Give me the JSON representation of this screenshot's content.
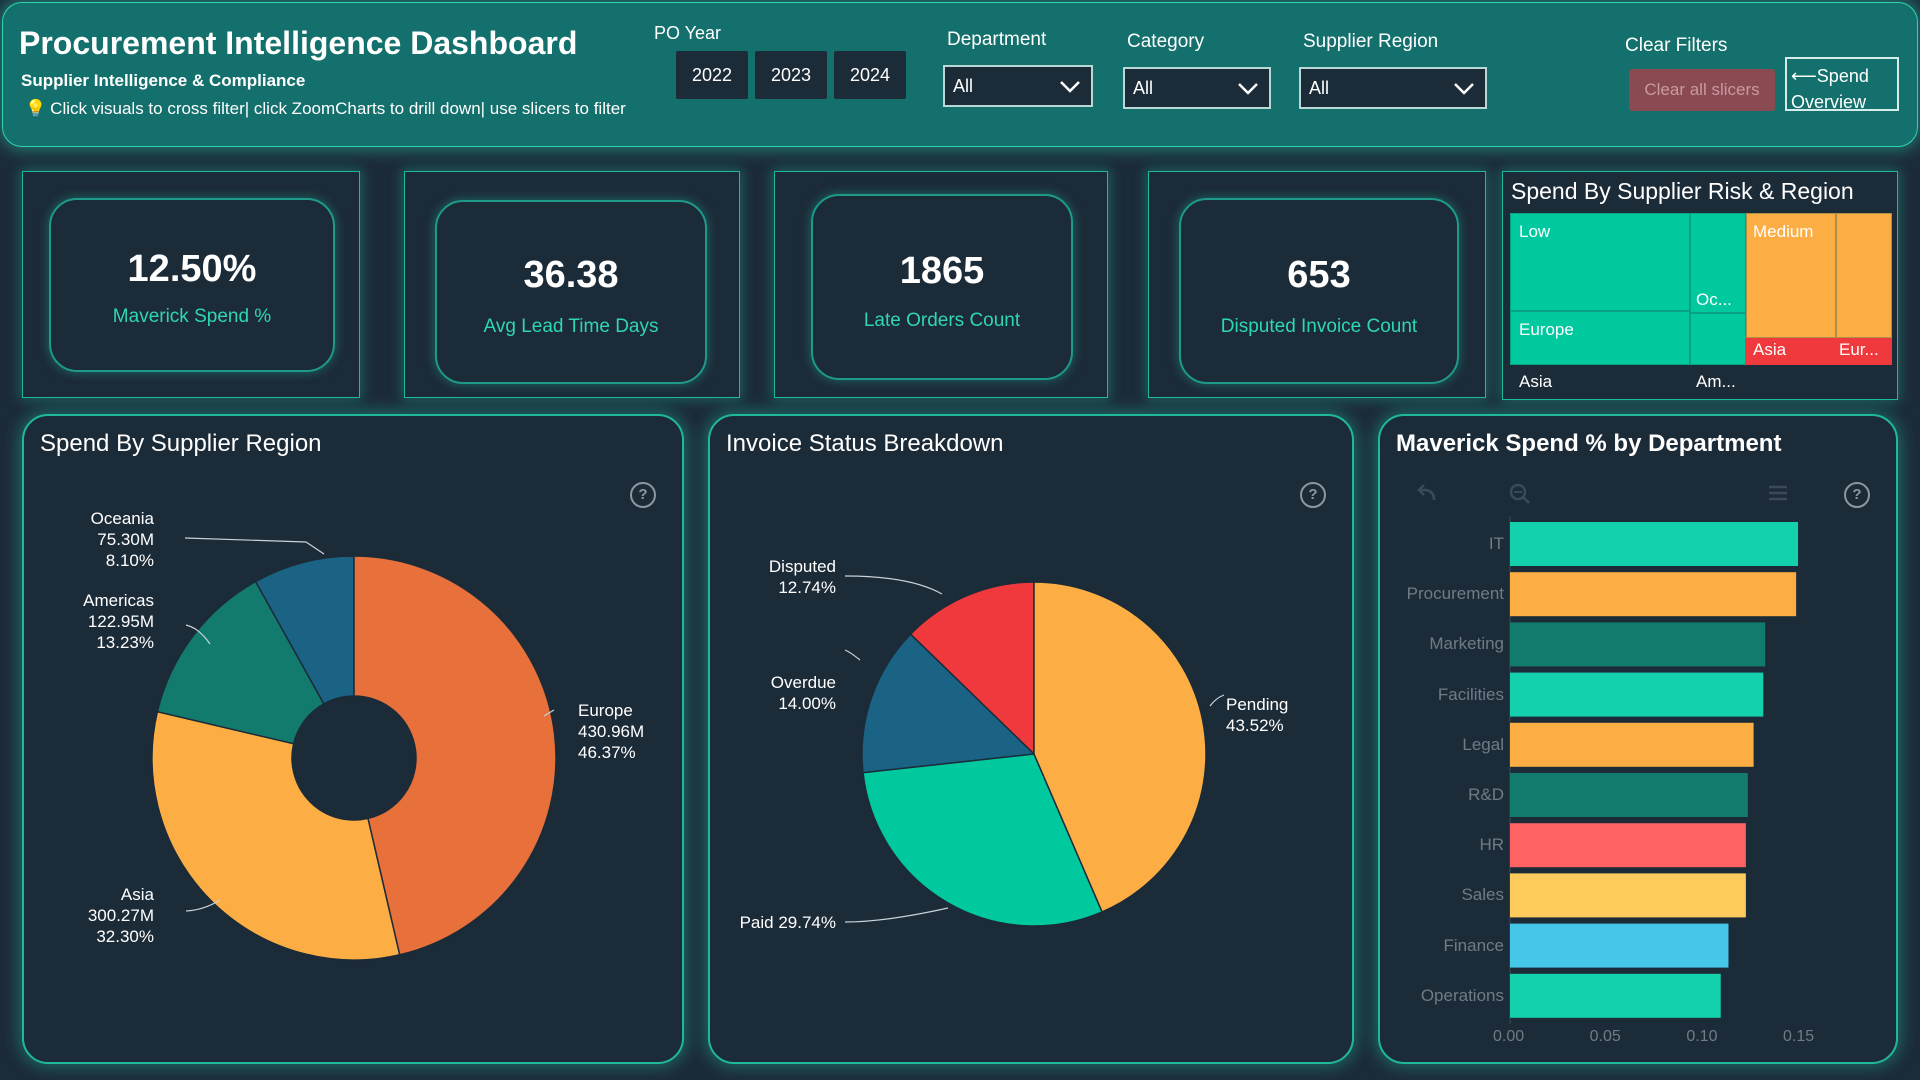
{
  "header": {
    "title": "Procurement Intelligence Dashboard",
    "subtitle": "Supplier Intelligence & Compliance",
    "hint": "Click visuals to cross filter| click ZoomCharts to drill down| use slicers to filter",
    "po_year_label": "PO Year",
    "years": [
      "2022",
      "2023",
      "2024"
    ],
    "department_label": "Department",
    "department_value": "All",
    "category_label": "Category",
    "category_value": "All",
    "region_label": "Supplier Region",
    "region_value": "All",
    "clear_filters_label": "Clear Filters",
    "clear_button": "Clear all slicers",
    "spend_overview_button": "⟵Spend Overview"
  },
  "kpis": [
    {
      "value": "12.50%",
      "label": "Maverick Spend %"
    },
    {
      "value": "36.38",
      "label": "Avg Lead Time Days"
    },
    {
      "value": "1865",
      "label": "Late Orders Count"
    },
    {
      "value": "653",
      "label": "Disputed Invoice Count"
    }
  ],
  "treemap": {
    "title": "Spend By Supplier Risk & Region",
    "labels": [
      "Low",
      "Europe",
      "Asia",
      "Oc...",
      "Am...",
      "Medium",
      "Asia",
      "Eur..."
    ],
    "colors": {
      "low": "#00c9a0",
      "medium": "#fcae45",
      "high": "#f0393c"
    }
  },
  "charts": {
    "region": {
      "title": "Spend By Supplier Region",
      "labels": [
        {
          "name": "Oceania",
          "amount": "75.30M",
          "pct": "8.10%"
        },
        {
          "name": "Americas",
          "amount": "122.95M",
          "pct": "13.23%"
        },
        {
          "name": "Europe",
          "amount": "430.96M",
          "pct": "46.37%"
        },
        {
          "name": "Asia",
          "amount": "300.27M",
          "pct": "32.30%"
        }
      ]
    },
    "invoice": {
      "title": "Invoice Status Breakdown",
      "labels": [
        {
          "name": "Disputed",
          "pct": "12.74%"
        },
        {
          "name": "Overdue",
          "pct": "14.00%"
        },
        {
          "name": "Pending",
          "pct": "43.52%"
        },
        {
          "name": "Paid",
          "pct": "29.74%"
        }
      ]
    },
    "maverick": {
      "title": "Maverick Spend % by Department",
      "ticks": [
        "0.00",
        "0.05",
        "0.10",
        "0.15"
      ]
    }
  },
  "chart_data": [
    {
      "type": "pie",
      "title": "Spend By Supplier Region",
      "categories": [
        "Europe",
        "Asia",
        "Americas",
        "Oceania"
      ],
      "values": [
        430.96,
        300.27,
        122.95,
        75.3
      ],
      "percent": [
        46.37,
        32.3,
        13.23,
        8.1
      ],
      "colors": [
        "#e8703b",
        "#fcae45",
        "#127b6e",
        "#1a6385"
      ],
      "donut": true
    },
    {
      "type": "pie",
      "title": "Invoice Status Breakdown",
      "categories": [
        "Pending",
        "Paid",
        "Overdue",
        "Disputed"
      ],
      "values": [
        43.52,
        29.74,
        14.0,
        12.74
      ],
      "colors": [
        "#fcae45",
        "#00c9a0",
        "#1a6385",
        "#f0393c"
      ]
    },
    {
      "type": "bar",
      "orientation": "horizontal",
      "title": "Maverick Spend % by Department",
      "categories": [
        "IT",
        "Procurement",
        "Marketing",
        "Facilities",
        "Legal",
        "R&D",
        "HR",
        "Sales",
        "Finance",
        "Operations"
      ],
      "values": [
        0.149,
        0.148,
        0.132,
        0.131,
        0.126,
        0.123,
        0.122,
        0.122,
        0.113,
        0.109
      ],
      "colors": [
        "#14d1ad",
        "#fcae45",
        "#127b6e",
        "#14d1ad",
        "#fcae45",
        "#127b6e",
        "#ff6262",
        "#fdcb5c",
        "#45c8e8",
        "#14d1ad"
      ],
      "xlim": [
        0,
        0.15
      ],
      "xticks": [
        0.0,
        0.05,
        0.1,
        0.15
      ]
    }
  ]
}
